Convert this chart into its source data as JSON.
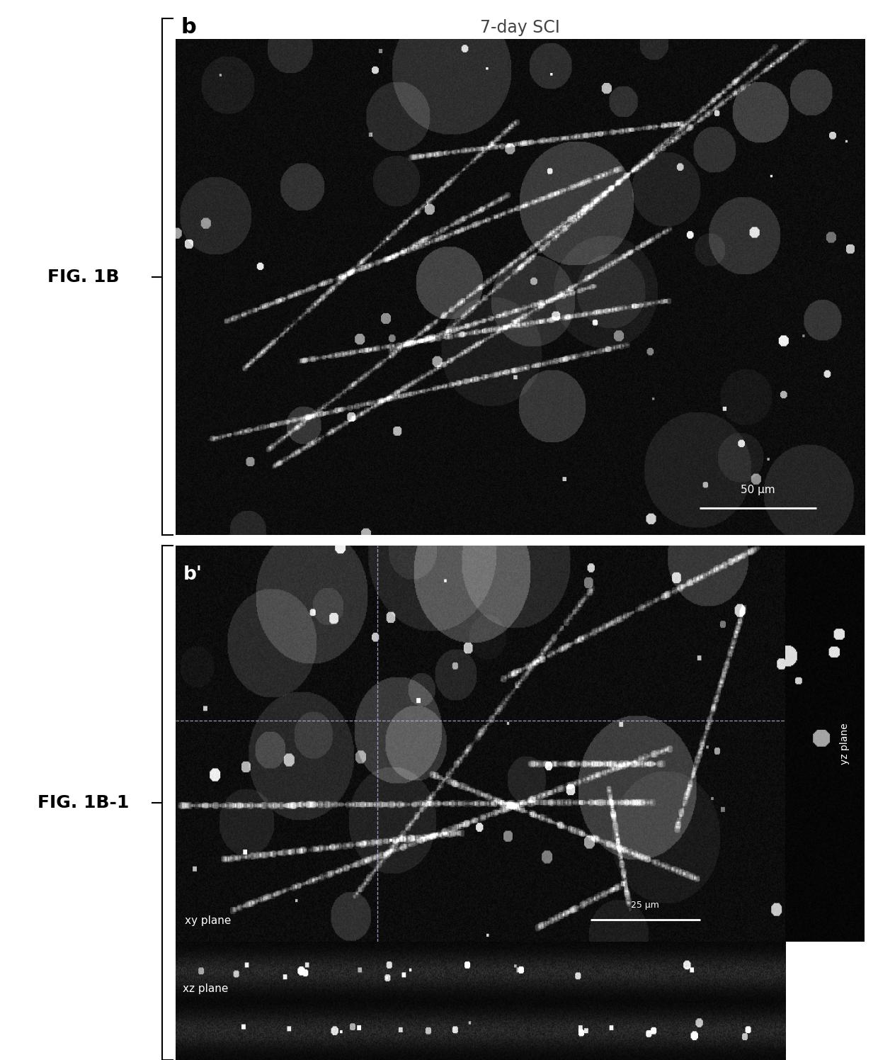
{
  "fig_width": 12.4,
  "fig_height": 14.96,
  "bg_color": "#ffffff",
  "label_fig1b": "FIG. 1B",
  "label_fig1b1": "FIG. 1B-1",
  "panel_b_label": "b",
  "panel_b_title": "7-day SCI",
  "panel_b_title_bg": "#c8c8c8",
  "panel_bprime_label": "b'",
  "panel_xy_label": "xy plane",
  "panel_xz_label": "xz plane",
  "panel_yz_label": "yz plane",
  "scale_bar_1_text": "50 μm",
  "scale_bar_2_text": "25 μm"
}
